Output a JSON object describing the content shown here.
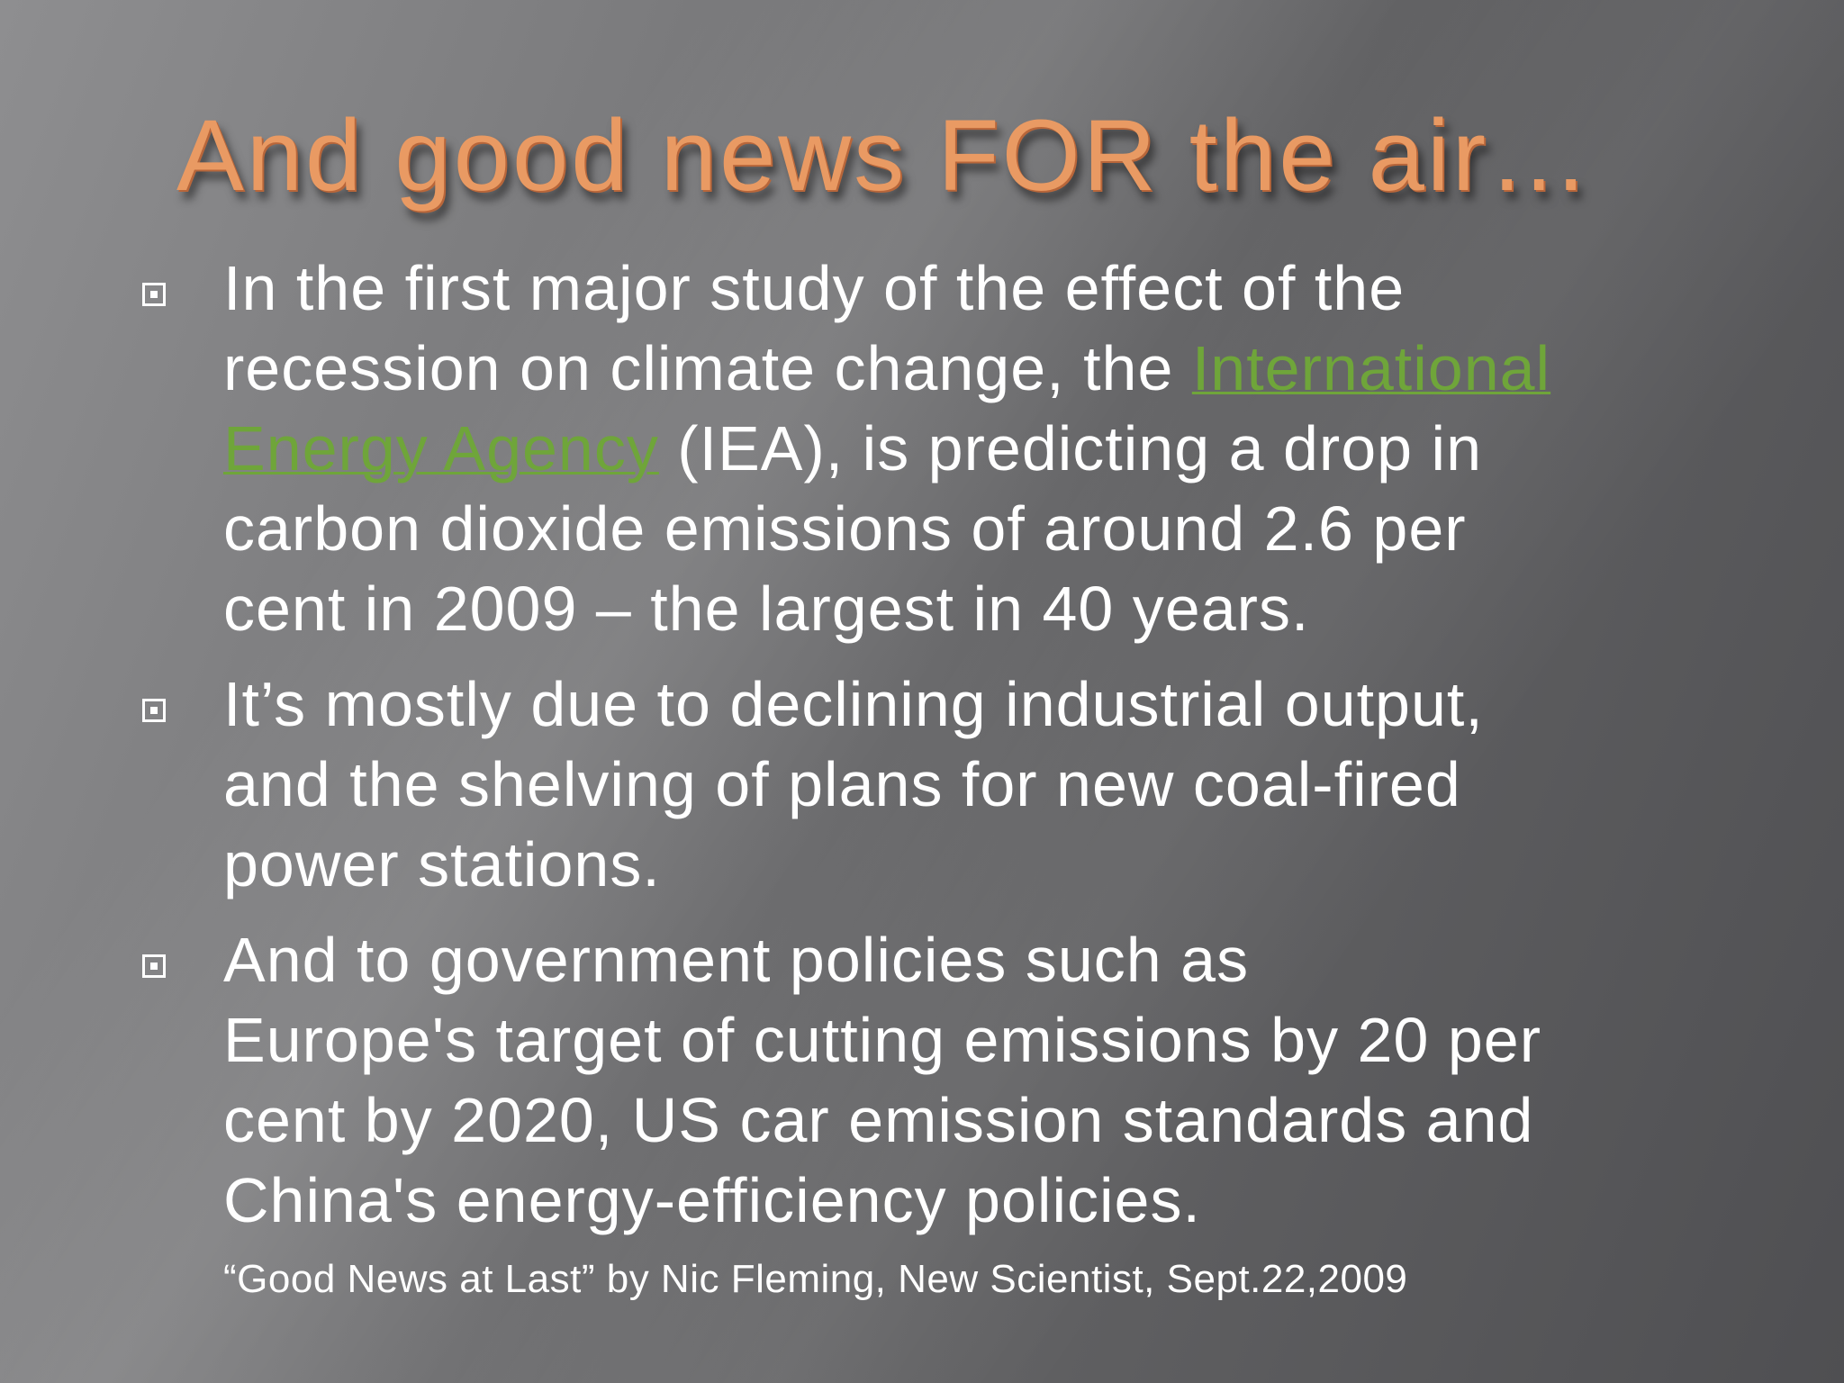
{
  "title": "And good news FOR the air…",
  "link_color": "#6fa53a",
  "title_color": "#e99a63",
  "bullets": [
    {
      "line1": "In the first major study of the effect of the",
      "line2_pre": "recession on climate change, the ",
      "line2_link": "International",
      "line3_link": "Energy Agency",
      "line3_post": " (IEA), is predicting a drop in",
      "line4": "carbon dioxide emissions of around 2.6 per",
      "line5": "cent in 2009 – the largest in 40 years."
    },
    {
      "line1": "It’s mostly due to declining industrial output,",
      "line2": "and the shelving of plans for new coal-fired",
      "line3": "power stations."
    },
    {
      "line1": "And to government policies such as",
      "line2": "Europe's target of cutting emissions by 20 per",
      "line3": "cent by 2020, US car emission standards and",
      "line4": "China's energy-efficiency policies."
    }
  ],
  "citation": "“Good News at Last” by Nic Fleming, New Scientist, Sept.22,2009",
  "bullet_icon": "boxed-square-bullet-icon"
}
